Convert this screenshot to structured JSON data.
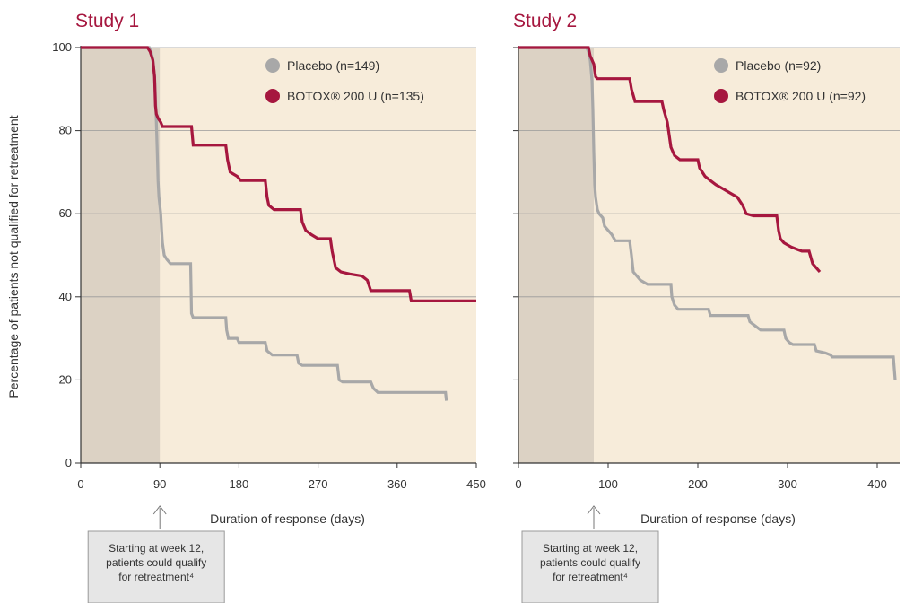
{
  "y_axis_label": "Percentage of patients not qualified for retreatment",
  "colors": {
    "botox": "#a6173f",
    "placebo": "#a8a8a8",
    "background": "#f7ecda",
    "shaded_window": "#dcd2c4",
    "title": "#a6173f"
  },
  "chart_data": [
    {
      "type": "line",
      "title": "Study 1",
      "xlabel": "Duration of response (days)",
      "ylabel": "Percentage of patients not qualified for retreatment",
      "xlim": [
        0,
        450
      ],
      "ylim": [
        0,
        100
      ],
      "x_ticks": [
        0,
        90,
        180,
        270,
        360,
        450
      ],
      "y_ticks": [
        0,
        20,
        40,
        60,
        80,
        100
      ],
      "retreatment_window": [
        0,
        90
      ],
      "grid": "horizontal",
      "legend_position": "top-right",
      "annotation": {
        "lines": [
          "Starting at week 12,",
          "patients could qualify",
          "for retreatment⁴"
        ],
        "x": 90
      },
      "series": [
        {
          "name": "Placebo (n=149)",
          "color": "#a8a8a8",
          "points": [
            [
              0,
              100
            ],
            [
              78,
              100
            ],
            [
              80,
              99
            ],
            [
              82,
              97
            ],
            [
              84,
              93
            ],
            [
              85,
              88
            ],
            [
              86,
              82
            ],
            [
              87,
              75
            ],
            [
              88,
              68
            ],
            [
              89,
              64
            ],
            [
              90,
              62
            ],
            [
              91,
              60
            ],
            [
              92,
              56
            ],
            [
              93,
              53
            ],
            [
              95,
              50
            ],
            [
              98,
              49
            ],
            [
              102,
              48
            ],
            [
              125,
              48
            ],
            [
              126,
              36
            ],
            [
              128,
              35
            ],
            [
              165,
              35
            ],
            [
              166,
              32
            ],
            [
              168,
              30
            ],
            [
              178,
              30
            ],
            [
              180,
              29
            ],
            [
              210,
              29
            ],
            [
              212,
              27
            ],
            [
              218,
              26
            ],
            [
              246,
              26
            ],
            [
              248,
              24
            ],
            [
              252,
              23.5
            ],
            [
              292,
              23.5
            ],
            [
              294,
              20
            ],
            [
              298,
              19.5
            ],
            [
              330,
              19.5
            ],
            [
              333,
              18
            ],
            [
              338,
              17
            ],
            [
              390,
              17
            ],
            [
              405,
              17
            ],
            [
              415,
              17
            ],
            [
              416,
              15
            ]
          ]
        },
        {
          "name": "BOTOX® 200 U (n=135)",
          "color": "#a6173f",
          "points": [
            [
              0,
              100
            ],
            [
              76,
              100
            ],
            [
              79,
              99
            ],
            [
              82,
              97
            ],
            [
              84,
              93
            ],
            [
              85,
              86
            ],
            [
              86,
              84
            ],
            [
              88,
              83
            ],
            [
              91,
              82
            ],
            [
              93,
              81
            ],
            [
              126,
              81
            ],
            [
              128,
              76.5
            ],
            [
              165,
              76.5
            ],
            [
              167,
              73
            ],
            [
              170,
              70
            ],
            [
              178,
              69
            ],
            [
              182,
              68
            ],
            [
              210,
              68
            ],
            [
              212,
              64
            ],
            [
              214,
              62
            ],
            [
              220,
              61
            ],
            [
              250,
              61
            ],
            [
              252,
              58
            ],
            [
              256,
              56
            ],
            [
              262,
              55
            ],
            [
              270,
              54
            ],
            [
              284,
              54
            ],
            [
              286,
              51
            ],
            [
              290,
              47
            ],
            [
              296,
              46
            ],
            [
              306,
              45.5
            ],
            [
              320,
              45
            ],
            [
              326,
              44
            ],
            [
              330,
              41.5
            ],
            [
              350,
              41.5
            ],
            [
              374,
              41.5
            ],
            [
              376,
              39
            ],
            [
              450,
              39
            ]
          ]
        }
      ]
    },
    {
      "type": "line",
      "title": "Study 2",
      "xlabel": "Duration of response (days)",
      "ylabel": "",
      "xlim": [
        0,
        425
      ],
      "ylim": [
        0,
        100
      ],
      "x_ticks": [
        0,
        100,
        200,
        300,
        400
      ],
      "y_ticks": [
        0,
        20,
        40,
        60,
        80,
        100
      ],
      "retreatment_window": [
        0,
        84
      ],
      "grid": "horizontal",
      "legend_position": "top-right",
      "annotation": {
        "lines": [
          "Starting at week 12,",
          "patients could qualify",
          "for retreatment⁴"
        ],
        "x": 84
      },
      "series": [
        {
          "name": "Placebo (n=92)",
          "color": "#a8a8a8",
          "points": [
            [
              0,
              100
            ],
            [
              76,
              100
            ],
            [
              78,
              99
            ],
            [
              80,
              97
            ],
            [
              82,
              92
            ],
            [
              83,
              85
            ],
            [
              84,
              75
            ],
            [
              85,
              67
            ],
            [
              86,
              64
            ],
            [
              88,
              61
            ],
            [
              90,
              60
            ],
            [
              94,
              59
            ],
            [
              96,
              57
            ],
            [
              100,
              56
            ],
            [
              104,
              55
            ],
            [
              108,
              53.5
            ],
            [
              124,
              53.5
            ],
            [
              126,
              50
            ],
            [
              128,
              46
            ],
            [
              132,
              45
            ],
            [
              136,
              44
            ],
            [
              144,
              43
            ],
            [
              170,
              43
            ],
            [
              171,
              40
            ],
            [
              174,
              38
            ],
            [
              178,
              37
            ],
            [
              212,
              37
            ],
            [
              214,
              35.5
            ],
            [
              256,
              35.5
            ],
            [
              258,
              34
            ],
            [
              264,
              33
            ],
            [
              270,
              32
            ],
            [
              296,
              32
            ],
            [
              298,
              30
            ],
            [
              302,
              29
            ],
            [
              306,
              28.5
            ],
            [
              318,
              28.5
            ],
            [
              330,
              28.5
            ],
            [
              332,
              27
            ],
            [
              342,
              26.5
            ],
            [
              348,
              26
            ],
            [
              350,
              25.5
            ],
            [
              418,
              25.5
            ],
            [
              420,
              20
            ]
          ]
        },
        {
          "name": "BOTOX® 200 U (n=92)",
          "color": "#a6173f",
          "points": [
            [
              0,
              100
            ],
            [
              78,
              100
            ],
            [
              80,
              98
            ],
            [
              84,
              96
            ],
            [
              86,
              93
            ],
            [
              88,
              92.5
            ],
            [
              124,
              92.5
            ],
            [
              126,
              90
            ],
            [
              130,
              87
            ],
            [
              160,
              87
            ],
            [
              162,
              85
            ],
            [
              166,
              82
            ],
            [
              168,
              79
            ],
            [
              170,
              76
            ],
            [
              174,
              74
            ],
            [
              180,
              73
            ],
            [
              200,
              73
            ],
            [
              202,
              71
            ],
            [
              208,
              69
            ],
            [
              214,
              68
            ],
            [
              220,
              67
            ],
            [
              228,
              66
            ],
            [
              236,
              65
            ],
            [
              244,
              64
            ],
            [
              250,
              62
            ],
            [
              254,
              60
            ],
            [
              262,
              59.5
            ],
            [
              288,
              59.5
            ],
            [
              290,
              56
            ],
            [
              292,
              54
            ],
            [
              296,
              53
            ],
            [
              304,
              52
            ],
            [
              310,
              51.5
            ],
            [
              316,
              51
            ],
            [
              324,
              51
            ],
            [
              328,
              48
            ],
            [
              332,
              47
            ],
            [
              336,
              46
            ]
          ]
        }
      ]
    }
  ]
}
